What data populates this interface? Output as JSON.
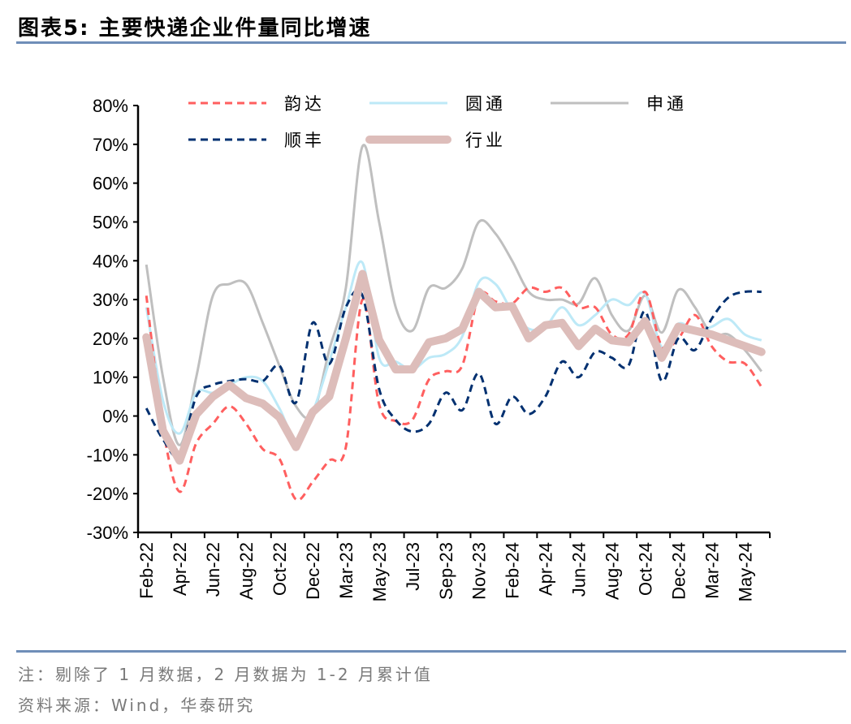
{
  "title": "图表5:  主要快递企业件量同比增速",
  "footer": {
    "note": "注：剔除了 1 月数据，2 月数据为 1-2 月累计值",
    "source": "资料来源：Wind，华泰研究"
  },
  "colors": {
    "rule": "#6F8EB8"
  },
  "chart_data": {
    "type": "line",
    "title": "",
    "xlabel": "",
    "ylabel": "",
    "ylim": [
      -30,
      80
    ],
    "yticks": [
      "-30%",
      "-20%",
      "-10%",
      "0%",
      "10%",
      "20%",
      "30%",
      "40%",
      "50%",
      "60%",
      "70%",
      "80%"
    ],
    "grid": false,
    "legend": "top",
    "x_tick_labels": [
      "Feb-22",
      "Apr-22",
      "Jun-22",
      "Aug-22",
      "Oct-22",
      "Dec-22",
      "Mar-23",
      "May-23",
      "Jul-23",
      "Sep-23",
      "Nov-23",
      "Feb-24",
      "Apr-24",
      "Jun-24",
      "Aug-24",
      "Oct-24",
      "Dec-24",
      "Mar-24",
      "May-24"
    ],
    "x_points": 38,
    "series": [
      {
        "name": "韵达",
        "color": "#FF5F5F",
        "style": "dashed",
        "values": [
          31,
          -3,
          -19.5,
          -7,
          -2,
          2.5,
          -2,
          -8.5,
          -11,
          -21.5,
          -17,
          -11.5,
          -8,
          30,
          3,
          -1.3,
          -1,
          9.4,
          11.5,
          13,
          31,
          29.5,
          29,
          33,
          32,
          33,
          28,
          28,
          21,
          21,
          32,
          18,
          20,
          26,
          18,
          14,
          13.5,
          7.5
        ]
      },
      {
        "name": "圆通",
        "color": "#BDE9F7",
        "style": "solid",
        "values": [
          28,
          4,
          -4.5,
          6,
          6,
          8,
          10,
          9,
          2,
          -6,
          1,
          14,
          28,
          39.5,
          15,
          14,
          12,
          15,
          16,
          20.5,
          34.5,
          34,
          27,
          22.5,
          23,
          28,
          23.4,
          26,
          30,
          28.6,
          31.5,
          17.8,
          23.8,
          22,
          23,
          25,
          21,
          19.5
        ]
      },
      {
        "name": "申通",
        "color": "#BFBFBF",
        "style": "solid",
        "values": [
          39,
          10,
          -7.5,
          10,
          31,
          34,
          34,
          24,
          13,
          2.5,
          0.4,
          17,
          33,
          69.5,
          50,
          28,
          22,
          33,
          33,
          38,
          50,
          47,
          40,
          32,
          30,
          30,
          29,
          35.5,
          26,
          22,
          31,
          21.5,
          32.5,
          28,
          21,
          21,
          17,
          11.5
        ]
      },
      {
        "name": "顺丰",
        "color": "#003070",
        "style": "dashed",
        "values": [
          2,
          -6,
          -10,
          5,
          8,
          9,
          9.5,
          9,
          13,
          3.5,
          24,
          13.4,
          28,
          31,
          7,
          -1,
          -4,
          -2,
          6,
          1.5,
          11,
          -2,
          5,
          0.5,
          5,
          14,
          10,
          16.5,
          15,
          13,
          27,
          9,
          20,
          17,
          25,
          30.5,
          32,
          32
        ]
      },
      {
        "name": "行业",
        "color": "#DDBDBA",
        "style": "thick",
        "values": [
          20.3,
          -3.8,
          -11.5,
          0.4,
          5,
          8,
          4.6,
          3.2,
          -0.3,
          -8,
          1,
          5,
          20,
          36.6,
          19.6,
          12,
          12,
          19,
          20,
          22.4,
          32,
          28,
          28.3,
          20,
          23.4,
          24,
          18,
          22.5,
          19.5,
          19,
          24.5,
          15,
          23,
          22,
          21,
          19.5,
          18,
          16.5
        ]
      }
    ]
  }
}
